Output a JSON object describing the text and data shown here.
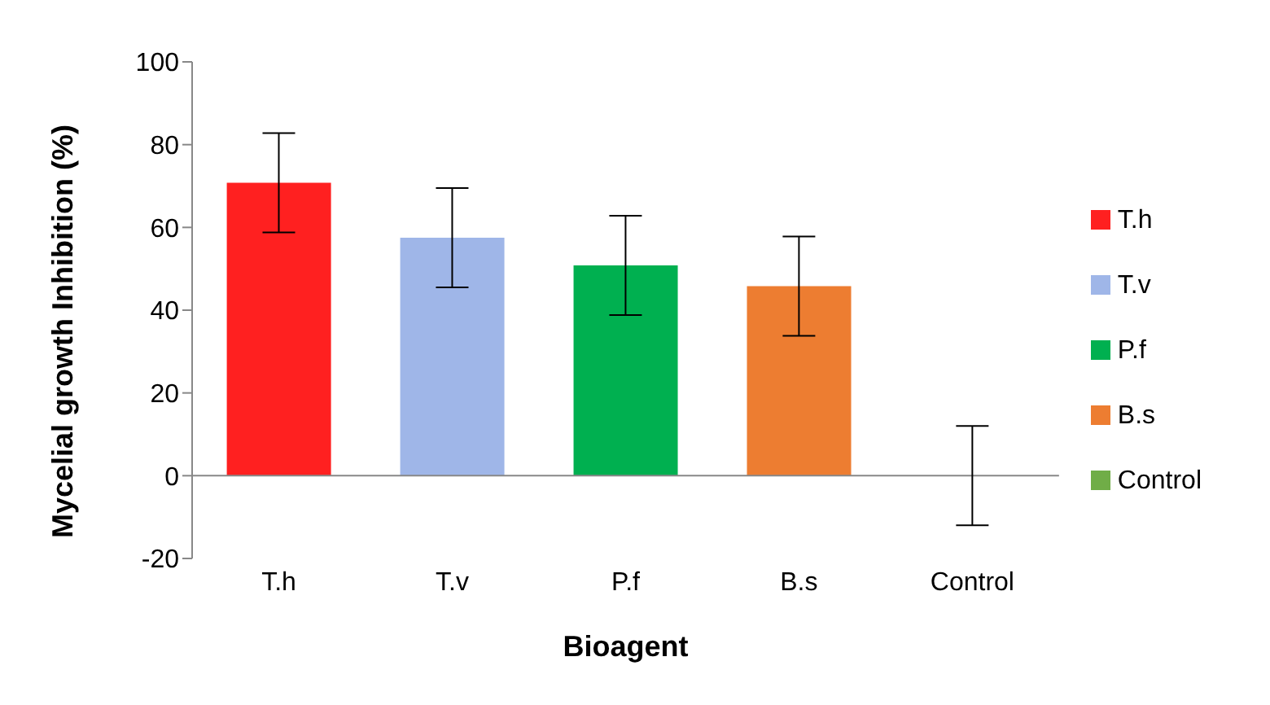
{
  "chart_data": {
    "type": "bar",
    "xlabel": "Bioagent",
    "ylabel": "Mycelial growth Inhibition (%)",
    "categories": [
      "T.h",
      "T.v",
      "P.f",
      "B.s",
      "Control"
    ],
    "series": [
      {
        "name": "T.h",
        "color": "#ff2020",
        "values": [
          70.8,
          null,
          null,
          null,
          null
        ],
        "errors": [
          12,
          null,
          null,
          null,
          null
        ]
      },
      {
        "name": "T.v",
        "color": "#9fb6e8",
        "values": [
          null,
          57.5,
          null,
          null,
          null
        ],
        "errors": [
          null,
          12,
          null,
          null,
          null
        ]
      },
      {
        "name": "P.f",
        "color": "#00b050",
        "values": [
          null,
          null,
          50.8,
          null,
          null
        ],
        "errors": [
          null,
          null,
          12,
          null,
          null
        ]
      },
      {
        "name": "B.s",
        "color": "#ed7d31",
        "values": [
          null,
          null,
          null,
          45.8,
          null
        ],
        "errors": [
          null,
          null,
          null,
          12,
          null
        ]
      },
      {
        "name": "Control",
        "color": "#70ad47",
        "values": [
          null,
          null,
          null,
          null,
          0
        ],
        "errors": [
          null,
          null,
          null,
          null,
          12
        ]
      }
    ],
    "stacked": true,
    "ylim": [
      -20,
      100
    ],
    "yticks": [
      -20,
      0,
      20,
      40,
      60,
      80,
      100
    ],
    "grid": false,
    "legend": "right",
    "ref_lines": [
      {
        "axis": "y",
        "value": 0,
        "color": "#888888"
      }
    ]
  }
}
